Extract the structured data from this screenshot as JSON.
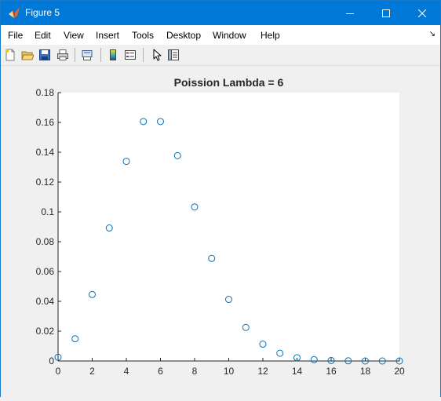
{
  "window": {
    "title": "Figure 5"
  },
  "menu": [
    "File",
    "Edit",
    "View",
    "Insert",
    "Tools",
    "Desktop",
    "Window",
    "Help"
  ],
  "toolbar": [
    "new-figure",
    "open-file",
    "save",
    "print",
    "print-preview",
    "insert-colorbar",
    "insert-legend",
    "edit-plot",
    "show-plot-tools"
  ],
  "colors": {
    "marker": "#0072bd",
    "titlebar": "#0078d7",
    "figure_bg": "#f0f0f0",
    "axes_bg": "#ffffff"
  },
  "chart_data": {
    "type": "scatter",
    "title": "Poission Lambda = 6",
    "xlabel": "",
    "ylabel": "",
    "xlim": [
      0,
      20
    ],
    "ylim": [
      0,
      0.18
    ],
    "xticks": [
      "0",
      "2",
      "4",
      "6",
      "8",
      "10",
      "12",
      "14",
      "16",
      "18",
      "20"
    ],
    "yticks": [
      "0",
      "0.02",
      "0.04",
      "0.06",
      "0.08",
      "0.1",
      "0.12",
      "0.14",
      "0.16",
      "0.18"
    ],
    "grid": false,
    "marker": "circle",
    "x": [
      0,
      1,
      2,
      3,
      4,
      5,
      6,
      7,
      8,
      9,
      10,
      11,
      12,
      13,
      14,
      15,
      16,
      17,
      18,
      19,
      20
    ],
    "y": [
      0.0025,
      0.0149,
      0.0446,
      0.0892,
      0.1339,
      0.1606,
      0.1606,
      0.1377,
      0.1033,
      0.0688,
      0.0413,
      0.0225,
      0.0113,
      0.0052,
      0.0022,
      0.0009,
      0.0003,
      0.0001,
      0.0,
      0.0,
      0.0
    ]
  }
}
